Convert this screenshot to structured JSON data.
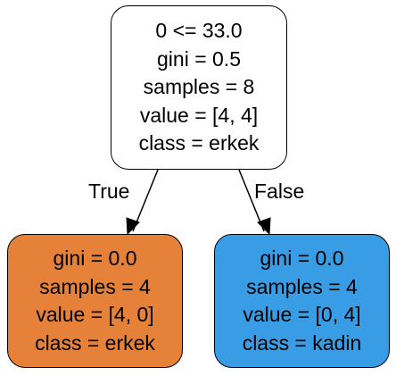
{
  "tree": {
    "root": {
      "condition": "0 <= 33.0",
      "gini": "gini = 0.5",
      "samples": "samples = 8",
      "value": "value = [4, 4]",
      "class": "class = erkek",
      "fill": "#ffffff"
    },
    "left": {
      "gini": "gini = 0.0",
      "samples": "samples = 4",
      "value": "value = [4, 0]",
      "class": "class = erkek",
      "fill": "#e58139"
    },
    "right": {
      "gini": "gini = 0.0",
      "samples": "samples = 4",
      "value": "value = [0, 4]",
      "class": "class = kadin",
      "fill": "#399de5"
    },
    "edges": {
      "true_label": "True",
      "false_label": "False"
    }
  }
}
